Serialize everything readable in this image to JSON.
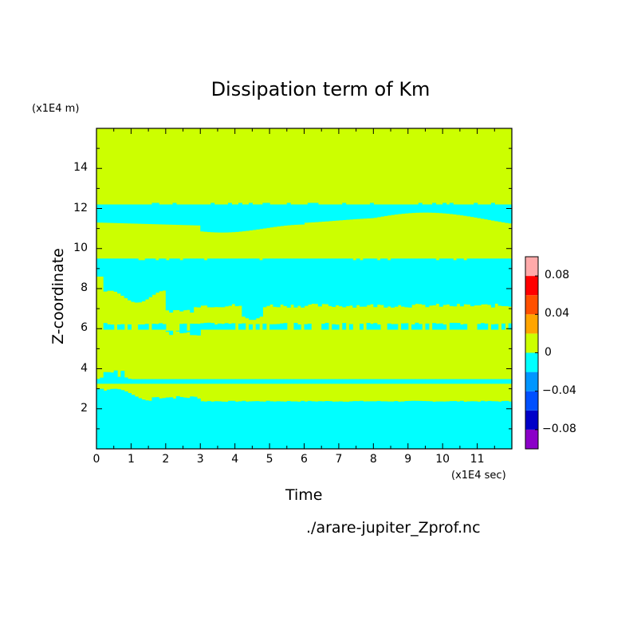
{
  "chart_data": {
    "type": "heatmap",
    "title": "Dissipation term of Km",
    "xlabel": "Time",
    "ylabel": "Z-coordinate",
    "x_unit": "(x1E4 sec)",
    "y_unit": "(x1E4 m)",
    "source": "./arare-jupiter_Zprof.nc",
    "xlim": [
      0,
      12
    ],
    "ylim": [
      0,
      16
    ],
    "x_ticks": [
      0,
      1,
      2,
      3,
      4,
      5,
      6,
      7,
      8,
      9,
      10,
      11
    ],
    "y_ticks": [
      2,
      4,
      6,
      8,
      10,
      12,
      14
    ],
    "colorbar": {
      "levels": [
        -0.1,
        -0.08,
        -0.06,
        -0.04,
        -0.02,
        0,
        0.02,
        0.04,
        0.06,
        0.08,
        0.1
      ],
      "colors": [
        "#8b00c8",
        "#0000c8",
        "#0050ff",
        "#0096ff",
        "#00ffff",
        "#ccff00",
        "#ffa500",
        "#ff5000",
        "#ff0000",
        "#ffaaaa"
      ],
      "tick_values": [
        -0.08,
        -0.04,
        0,
        0.04,
        0.08
      ],
      "tick_labels": [
        "−0.08",
        "−0.04",
        "0",
        "0.04",
        "0.08"
      ]
    },
    "regions": [
      {
        "value": "positive",
        "color": "#ccff00",
        "z_range": [
          0,
          16
        ]
      },
      {
        "value": "negative",
        "color": "#00ffff",
        "z_range": [
          0,
          2.3
        ]
      },
      {
        "value": "negative",
        "color": "#00ffff",
        "z_range": [
          3.3,
          3.5
        ]
      },
      {
        "value": "negative",
        "color": "#00ffff",
        "z_range": [
          7.0,
          9.5
        ]
      },
      {
        "value": "negative",
        "color": "#00ffff",
        "z_range": [
          11.4,
          12.2
        ]
      }
    ]
  }
}
